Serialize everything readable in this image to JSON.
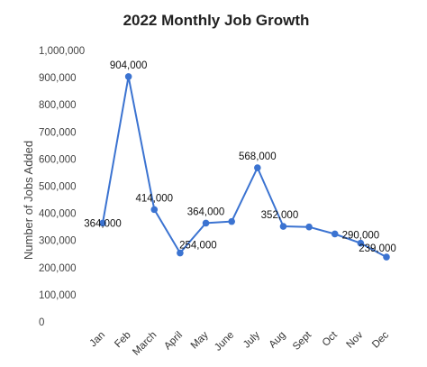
{
  "chart_data": {
    "type": "line",
    "title": "2022 Monthly Job Growth",
    "xlabel": "",
    "ylabel": "Number of Jobs Added",
    "categories": [
      "Jan",
      "Feb",
      "March",
      "April",
      "May",
      "June",
      "July",
      "Aug",
      "Sept",
      "Oct",
      "Nov",
      "Dec"
    ],
    "series": [
      {
        "values": [
          364000,
          904000,
          414000,
          254000,
          364000,
          370000,
          568000,
          352000,
          350000,
          324000,
          290000,
          239000
        ]
      }
    ],
    "data_labels": [
      {
        "index": 0,
        "text": "364,000"
      },
      {
        "index": 1,
        "text": "904,000"
      },
      {
        "index": 2,
        "text": "414,000"
      },
      {
        "index": 3,
        "text": "254,000"
      },
      {
        "index": 4,
        "text": "364,000"
      },
      {
        "index": 6,
        "text": "568,000"
      },
      {
        "index": 7,
        "text": "352,000"
      },
      {
        "index": 10,
        "text": "290,000"
      },
      {
        "index": 11,
        "text": "239,000"
      }
    ],
    "ylim": [
      0,
      1000000
    ],
    "yticks": [
      "0",
      "100,000",
      "200,000",
      "300,000",
      "400,000",
      "500,000",
      "600,000",
      "700,000",
      "800,000",
      "900,000",
      "1,000,000"
    ],
    "grid": false,
    "legend": "none",
    "line_color": "#3b73d1",
    "marker_color": "#3b73d1"
  }
}
